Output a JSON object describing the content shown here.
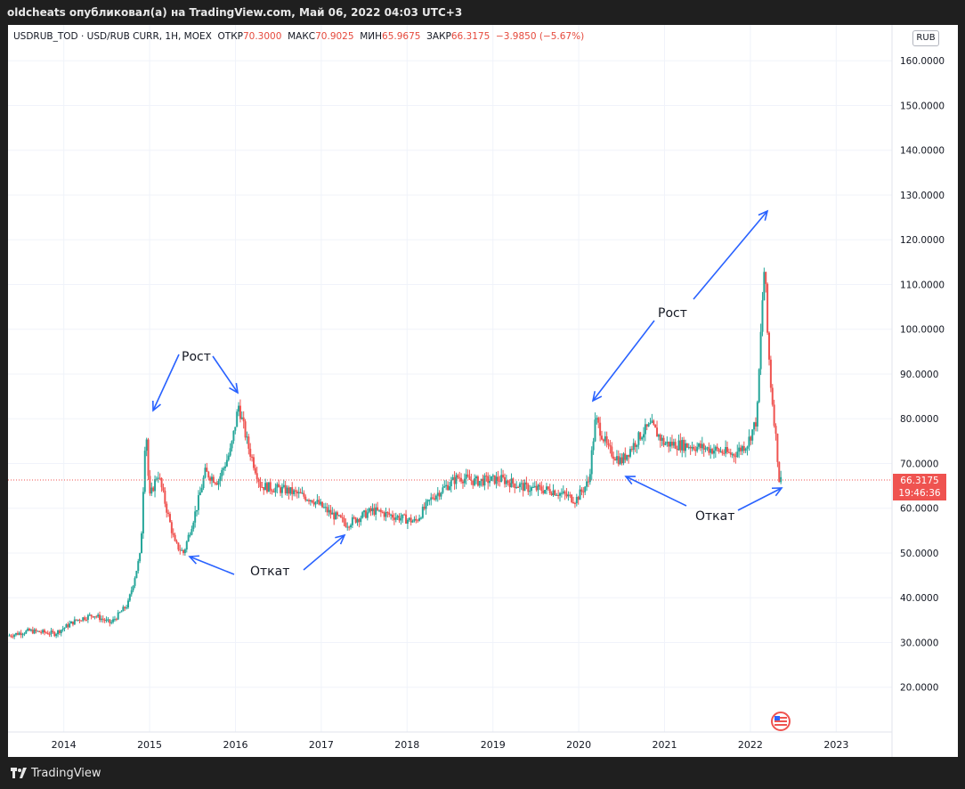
{
  "header": {
    "publisher_line": "oldcheats опубликовал(а) на TradingView.com, Май 06, 2022 04:03 UTC+3"
  },
  "legend": {
    "symbol": "USDRUB_TOD · USD/RUB CURR, 1H, MOEX",
    "open_label": "ОТКР",
    "open_value": "70.3000",
    "high_label": "МАКС",
    "high_value": "70.9025",
    "low_label": "МИН",
    "low_value": "65.9675",
    "close_label": "ЗАКР",
    "close_value": "66.3175",
    "change": "−3.9850 (−5.67%)"
  },
  "currency_badge": "RUB",
  "last_price": {
    "value": "66.3175",
    "countdown": "19:46:36"
  },
  "annotations": {
    "rost_1": "Рост",
    "otkat_1": "Откат",
    "rost_2": "Рост",
    "otkat_2": "Откат"
  },
  "footer": {
    "brand": "TradingView"
  },
  "colors": {
    "up": "#26a69a",
    "down": "#ef5350",
    "arrow": "#2962ff",
    "grid": "#f0f3fa"
  },
  "chart_data": {
    "type": "candlestick",
    "x_ticks": [
      "2014",
      "2015",
      "2016",
      "2017",
      "2018",
      "2019",
      "2020",
      "2021",
      "2022",
      "2023"
    ],
    "y_ticks": [
      "20.0000",
      "30.0000",
      "40.0000",
      "50.0000",
      "60.0000",
      "70.0000",
      "80.0000",
      "90.0000",
      "100.0000",
      "110.0000",
      "120.0000",
      "130.0000",
      "140.0000",
      "150.0000",
      "160.0000"
    ],
    "ylim": [
      10,
      168
    ],
    "xlim": [
      2013.35,
      2023.65
    ],
    "last_price": 66.3175,
    "series": [
      {
        "x": 2013.35,
        "y": 31.5
      },
      {
        "x": 2013.6,
        "y": 32.6
      },
      {
        "x": 2013.9,
        "y": 32.0
      },
      {
        "x": 2014.15,
        "y": 35.0
      },
      {
        "x": 2014.35,
        "y": 36.2
      },
      {
        "x": 2014.55,
        "y": 34.3
      },
      {
        "x": 2014.75,
        "y": 38.5
      },
      {
        "x": 2014.9,
        "y": 50.0
      },
      {
        "x": 2014.96,
        "y": 79.5
      },
      {
        "x": 2015.0,
        "y": 62.0
      },
      {
        "x": 2015.1,
        "y": 68.0
      },
      {
        "x": 2015.3,
        "y": 52.0
      },
      {
        "x": 2015.4,
        "y": 50.0
      },
      {
        "x": 2015.55,
        "y": 60.0
      },
      {
        "x": 2015.65,
        "y": 68.0
      },
      {
        "x": 2015.8,
        "y": 66.0
      },
      {
        "x": 2015.95,
        "y": 73.0
      },
      {
        "x": 2016.04,
        "y": 83.0
      },
      {
        "x": 2016.15,
        "y": 74.0
      },
      {
        "x": 2016.3,
        "y": 65.0
      },
      {
        "x": 2016.6,
        "y": 64.0
      },
      {
        "x": 2016.9,
        "y": 62.0
      },
      {
        "x": 2017.1,
        "y": 59.0
      },
      {
        "x": 2017.3,
        "y": 56.5
      },
      {
        "x": 2017.6,
        "y": 59.5
      },
      {
        "x": 2017.9,
        "y": 58.0
      },
      {
        "x": 2018.1,
        "y": 57.0
      },
      {
        "x": 2018.3,
        "y": 62.5
      },
      {
        "x": 2018.6,
        "y": 67.0
      },
      {
        "x": 2018.8,
        "y": 66.0
      },
      {
        "x": 2019.1,
        "y": 66.5
      },
      {
        "x": 2019.4,
        "y": 64.5
      },
      {
        "x": 2019.7,
        "y": 64.0
      },
      {
        "x": 2019.97,
        "y": 61.9
      },
      {
        "x": 2020.12,
        "y": 66.0
      },
      {
        "x": 2020.2,
        "y": 80.0
      },
      {
        "x": 2020.35,
        "y": 73.0
      },
      {
        "x": 2020.5,
        "y": 70.5
      },
      {
        "x": 2020.75,
        "y": 77.0
      },
      {
        "x": 2020.85,
        "y": 78.5
      },
      {
        "x": 2021.0,
        "y": 74.5
      },
      {
        "x": 2021.3,
        "y": 74.0
      },
      {
        "x": 2021.6,
        "y": 73.0
      },
      {
        "x": 2021.8,
        "y": 72.0
      },
      {
        "x": 2021.97,
        "y": 74.5
      },
      {
        "x": 2022.08,
        "y": 80.0
      },
      {
        "x": 2022.14,
        "y": 105.0
      },
      {
        "x": 2022.17,
        "y": 115.0
      },
      {
        "x": 2022.2,
        "y": 100.0
      },
      {
        "x": 2022.24,
        "y": 88.0
      },
      {
        "x": 2022.28,
        "y": 80.0
      },
      {
        "x": 2022.31,
        "y": 74.0
      },
      {
        "x": 2022.34,
        "y": 66.3
      }
    ]
  }
}
